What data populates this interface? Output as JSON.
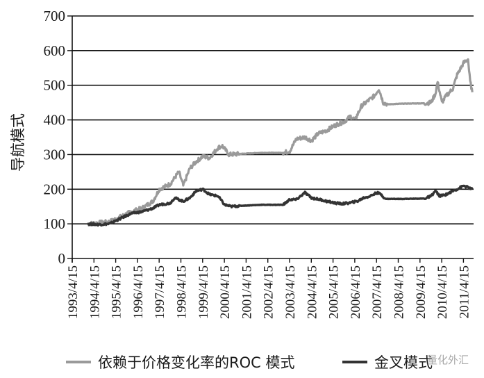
{
  "chart_data": {
    "type": "line",
    "title": "",
    "xlabel": "",
    "ylabel": "导航模式",
    "ylim": [
      0,
      700
    ],
    "yticks": [
      0,
      100,
      200,
      300,
      400,
      500,
      600,
      700
    ],
    "xticks": [
      "1993/4/15",
      "1994/4/15",
      "1995/4/15",
      "1996/4/15",
      "1997/4/15",
      "1998/4/15",
      "1999/4/15",
      "2000/4/15",
      "2001/4/15",
      "2002/4/15",
      "2003/4/15",
      "2004/4/15",
      "2005/4/15",
      "2006/4/15",
      "2007/4/15",
      "2008/4/15",
      "2009/4/15",
      "2010/4/15",
      "2011/4/15"
    ],
    "grid": {
      "horizontal": true,
      "vertical": false
    },
    "legend_position": "bottom",
    "series": [
      {
        "name": "依赖于价格变化率的ROC 模式",
        "color": "#9a9a9a",
        "x": [
          1994.0,
          1994.5,
          1995.0,
          1995.5,
          1996.0,
          1996.5,
          1997.0,
          1997.3,
          1997.8,
          1998.2,
          1998.4,
          1998.7,
          1999.0,
          1999.3,
          1999.6,
          2000.0,
          2000.2,
          2000.5,
          2001.0,
          2002.0,
          2003.0,
          2003.3,
          2003.6,
          2004.0,
          2004.3,
          2004.6,
          2005.0,
          2005.4,
          2005.8,
          2006.1,
          2006.3,
          2006.6,
          2006.9,
          2007.2,
          2007.4,
          2007.6,
          2007.8,
          2008.5,
          2009.5,
          2009.8,
          2010.0,
          2010.1,
          2010.3,
          2010.5,
          2010.8,
          2011.0,
          2011.3,
          2011.5,
          2011.6,
          2011.7
        ],
        "values": [
          100,
          103,
          106,
          120,
          135,
          145,
          165,
          200,
          215,
          250,
          210,
          260,
          280,
          295,
          290,
          320,
          325,
          300,
          302,
          305,
          305,
          310,
          345,
          350,
          340,
          360,
          370,
          385,
          395,
          410,
          400,
          440,
          455,
          470,
          490,
          450,
          445,
          447,
          448,
          450,
          475,
          510,
          450,
          470,
          490,
          530,
          565,
          575,
          510,
          480
        ]
      },
      {
        "name": "金叉模式",
        "color": "#333333",
        "x": [
          1994.0,
          1994.5,
          1995.0,
          1995.5,
          1996.0,
          1996.5,
          1997.0,
          1997.3,
          1997.8,
          1998.0,
          1998.4,
          1998.7,
          1999.0,
          1999.3,
          1999.6,
          2000.0,
          2000.3,
          2000.6,
          2001.0,
          2002.0,
          2003.0,
          2003.3,
          2003.6,
          2004.0,
          2004.3,
          2004.7,
          2005.0,
          2005.4,
          2005.7,
          2006.0,
          2006.4,
          2006.7,
          2007.0,
          2007.3,
          2007.5,
          2007.7,
          2008.5,
          2009.5,
          2009.8,
          2010.0,
          2010.2,
          2010.5,
          2010.8,
          2011.0,
          2011.3,
          2011.5,
          2011.7
        ],
        "values": [
          100,
          98,
          100,
          115,
          130,
          135,
          145,
          155,
          160,
          175,
          165,
          175,
          195,
          200,
          185,
          180,
          155,
          150,
          152,
          155,
          155,
          170,
          170,
          190,
          175,
          170,
          165,
          160,
          158,
          160,
          165,
          175,
          180,
          190,
          185,
          172,
          172,
          173,
          180,
          195,
          180,
          185,
          195,
          200,
          210,
          205,
          200
        ]
      }
    ]
  },
  "legend": {
    "items": [
      {
        "label": "依赖于价格变化率的ROC 模式",
        "color": "#9a9a9a"
      },
      {
        "label": "金叉模式",
        "color": "#333333"
      }
    ]
  },
  "watermark": {
    "text": "量化外汇"
  }
}
